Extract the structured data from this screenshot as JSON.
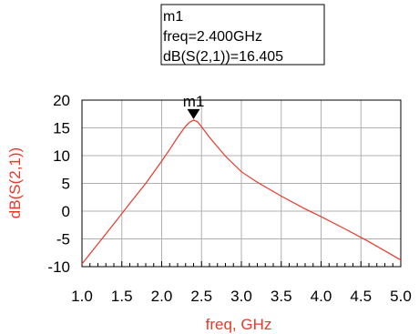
{
  "chart_data": {
    "type": "line",
    "xlabel": "freq, GHz",
    "ylabel": "dB(S(2,1))",
    "xlim": [
      1.0,
      5.0
    ],
    "ylim": [
      -10,
      20
    ],
    "x_ticks": [
      "1.0",
      "1.5",
      "2.0",
      "2.5",
      "3.0",
      "3.5",
      "4.0",
      "4.5",
      "5.0"
    ],
    "y_ticks": [
      "20",
      "15",
      "10",
      "5",
      "0",
      "-5",
      "-10"
    ],
    "x_tick_values": [
      1.0,
      1.5,
      2.0,
      2.5,
      3.0,
      3.5,
      4.0,
      4.5,
      5.0
    ],
    "y_tick_values": [
      20,
      15,
      10,
      5,
      0,
      -5,
      -10
    ],
    "grid": true,
    "series": [
      {
        "color": "#e8392b",
        "x": [
          1.0,
          1.2,
          1.4,
          1.6,
          1.8,
          2.0,
          2.1,
          2.2,
          2.3,
          2.35,
          2.4,
          2.45,
          2.5,
          2.6,
          2.8,
          3.0,
          3.2,
          3.5,
          3.8,
          4.0,
          4.3,
          4.6,
          5.0
        ],
        "y": [
          -9.5,
          -5.9,
          -2.3,
          1.4,
          5.0,
          9.0,
          11.1,
          13.3,
          15.3,
          16.0,
          16.4,
          16.1,
          15.2,
          13.3,
          9.9,
          7.1,
          5.2,
          2.7,
          0.4,
          -1.0,
          -3.2,
          -5.5,
          -8.8
        ]
      }
    ],
    "marker": {
      "name": "m1",
      "x": 2.4,
      "y": 16.405,
      "readout": [
        "m1",
        "freq=2.400GHz",
        "dB(S(2,1))=16.405"
      ]
    }
  },
  "colors": {
    "axis_label": "#e8392b",
    "trace": "#e8392b",
    "grid": "#b0b0b0",
    "frame": "#000000"
  }
}
